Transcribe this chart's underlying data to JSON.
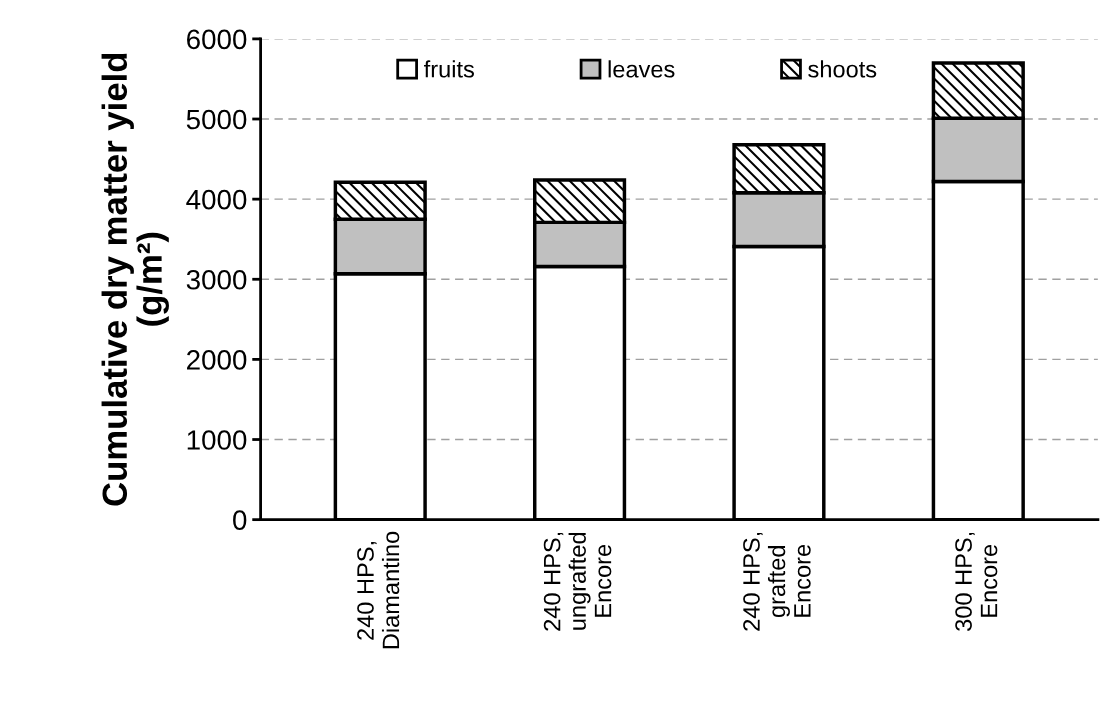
{
  "chart_data": {
    "type": "bar",
    "stacked": true,
    "ylabel": "Cumulative dry matter yield\n(g/m²)",
    "categories": [
      "240 HPS,\nDiamantino",
      "240 HPS,\nungrafted\nEncore",
      "240 HPS,\ngrafted\nEncore",
      "300 HPS,\nEncore"
    ],
    "series": [
      {
        "name": "fruits",
        "color": "#ffffff",
        "values": [
          3070,
          3160,
          3410,
          4220
        ]
      },
      {
        "name": "leaves",
        "color": "#c0c0c0",
        "values": [
          680,
          550,
          670,
          790
        ]
      },
      {
        "name": "shoots",
        "color": "#000000",
        "values": [
          460,
          530,
          600,
          690
        ]
      }
    ],
    "ylim": [
      0,
      6000
    ],
    "yticks": [
      0,
      1000,
      2000,
      3000,
      4000,
      5000,
      6000
    ],
    "grid": "y",
    "legend": "top"
  }
}
